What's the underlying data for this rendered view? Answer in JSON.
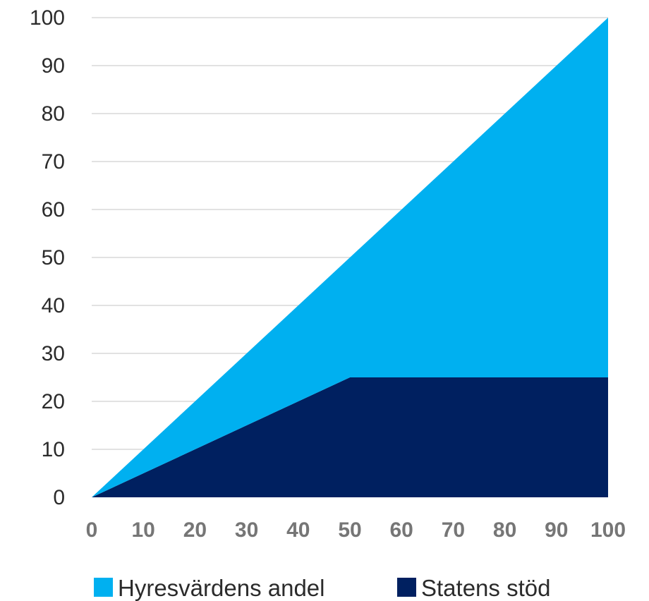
{
  "chart_data": {
    "type": "area",
    "stacked": true,
    "title": "",
    "xlabel": "",
    "ylabel": "",
    "x": [
      0,
      10,
      20,
      30,
      40,
      50,
      60,
      70,
      80,
      90,
      100
    ],
    "xlim": [
      0,
      100
    ],
    "ylim": [
      0,
      100
    ],
    "yticks": [
      0,
      10,
      20,
      30,
      40,
      50,
      60,
      70,
      80,
      90,
      100
    ],
    "grid": true,
    "legend_position": "bottom",
    "series": [
      {
        "name": "Statens stöd",
        "color": "#002060",
        "values": [
          0,
          5,
          10,
          15,
          20,
          25,
          25,
          25,
          25,
          25,
          25
        ]
      },
      {
        "name": "Hyresvärdens andel",
        "color": "#00B0F0",
        "values": [
          0,
          5,
          10,
          15,
          20,
          25,
          35,
          45,
          55,
          65,
          75
        ]
      }
    ],
    "legend_order": [
      "Hyresvärdens andel",
      "Statens stöd"
    ]
  }
}
